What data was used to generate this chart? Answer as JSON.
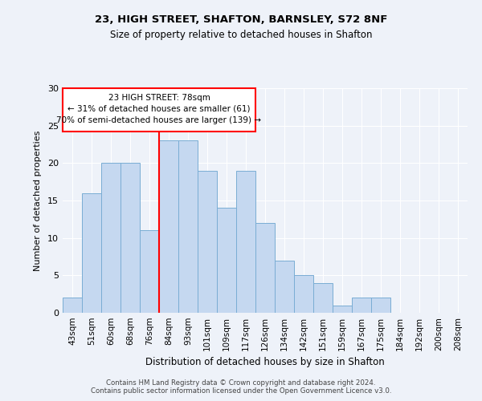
{
  "title_line1": "23, HIGH STREET, SHAFTON, BARNSLEY, S72 8NF",
  "title_line2": "Size of property relative to detached houses in Shafton",
  "xlabel": "Distribution of detached houses by size in Shafton",
  "ylabel": "Number of detached properties",
  "categories": [
    "43sqm",
    "51sqm",
    "60sqm",
    "68sqm",
    "76sqm",
    "84sqm",
    "93sqm",
    "101sqm",
    "109sqm",
    "117sqm",
    "126sqm",
    "134sqm",
    "142sqm",
    "151sqm",
    "159sqm",
    "167sqm",
    "175sqm",
    "184sqm",
    "192sqm",
    "200sqm",
    "208sqm"
  ],
  "values": [
    2,
    16,
    20,
    20,
    11,
    23,
    23,
    19,
    14,
    19,
    12,
    7,
    5,
    4,
    1,
    2,
    2,
    0,
    0,
    0,
    0
  ],
  "bar_color": "#c5d8f0",
  "bar_edge_color": "#7aadd4",
  "red_line_index": 4.5,
  "annotation_title": "23 HIGH STREET: 78sqm",
  "annotation_line2": "← 31% of detached houses are smaller (61)",
  "annotation_line3": "70% of semi-detached houses are larger (139) →",
  "ylim": [
    0,
    30
  ],
  "yticks": [
    0,
    5,
    10,
    15,
    20,
    25,
    30
  ],
  "footer_line1": "Contains HM Land Registry data © Crown copyright and database right 2024.",
  "footer_line2": "Contains public sector information licensed under the Open Government Licence v3.0.",
  "background_color": "#eef2f9",
  "plot_bg_color": "#eef2f9"
}
